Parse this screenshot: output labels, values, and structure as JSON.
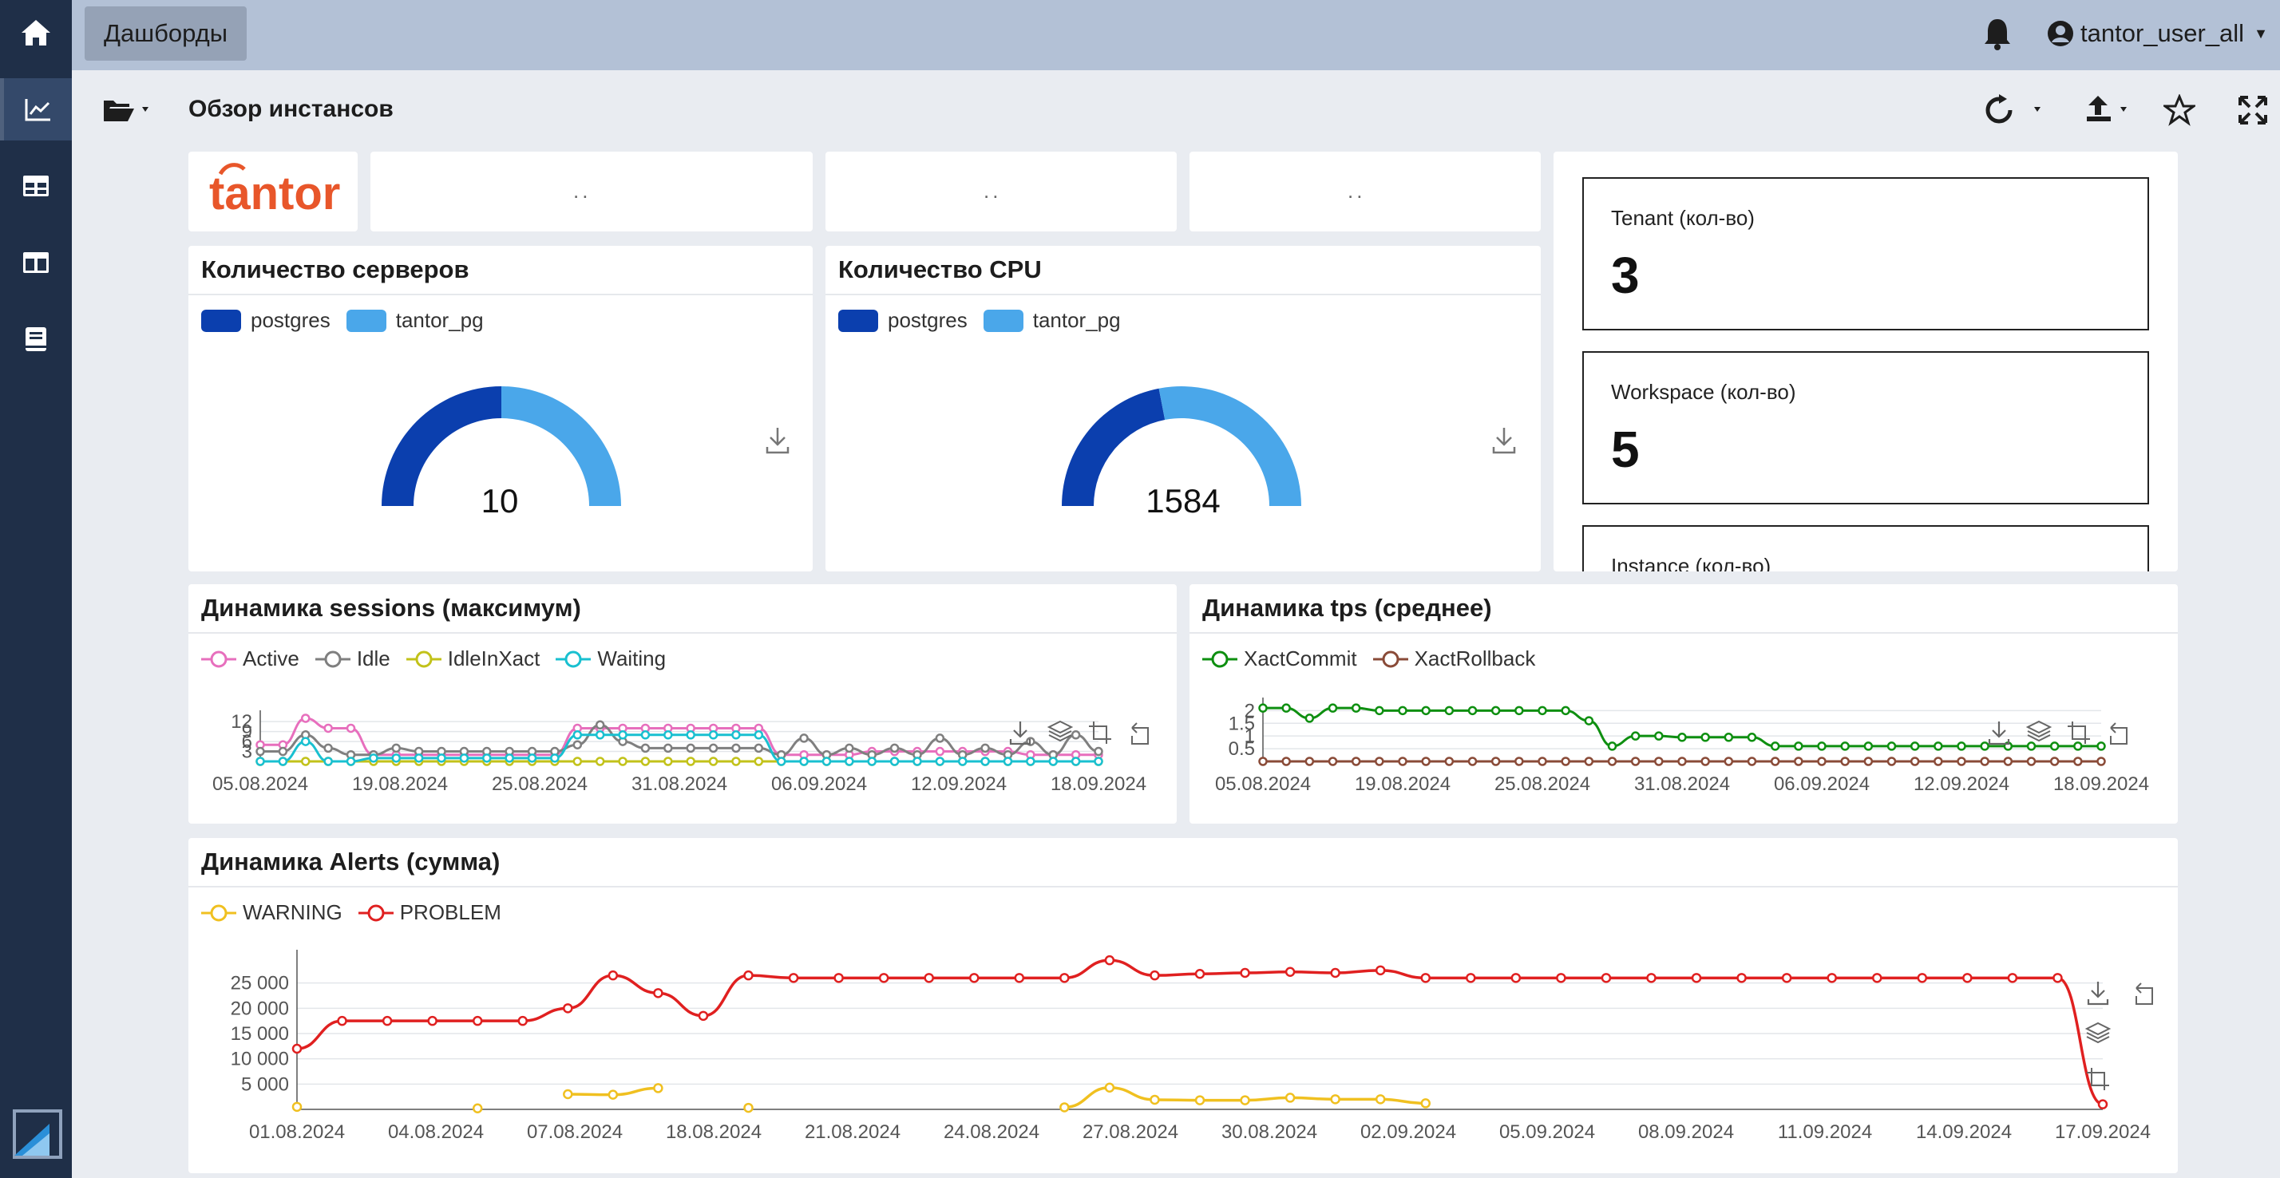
{
  "app": {
    "tab_label": "Дашборды",
    "username": "tantor_user_all"
  },
  "toolbar": {
    "title": "Обзор инстансов"
  },
  "logo": {
    "text": "tantor",
    "color": "#e8562a"
  },
  "placeholders": [
    "..",
    "..",
    ".."
  ],
  "servers": {
    "title": "Количество серверов",
    "legend": [
      "postgres",
      "tantor_pg"
    ],
    "value": "10"
  },
  "cpu": {
    "title": "Количество CPU",
    "legend": [
      "postgres",
      "tantor_pg"
    ],
    "value": "1584"
  },
  "stats": [
    {
      "label": "Tenant (кол-во)",
      "value": "3"
    },
    {
      "label": "Workspace (кол-во)",
      "value": "5"
    },
    {
      "label": "Instance (кол-во)",
      "value": ""
    }
  ],
  "sessions": {
    "title": "Динамика sessions (максимум)",
    "legend": [
      "Active",
      "Idle",
      "IdleInXact",
      "Waiting"
    ]
  },
  "tps": {
    "title": "Динамика tps (среднее)",
    "legend": [
      "XactCommit",
      "XactRollback"
    ]
  },
  "alerts": {
    "title": "Динамика Alerts (сумма)",
    "legend": [
      "WARNING",
      "PROBLEM"
    ]
  },
  "colors": {
    "postgres": "#0b3fae",
    "tantor_pg": "#4aa7ea",
    "active": "#e76fbd",
    "idle": "#7f7f7f",
    "idleinxact": "#c2c21a",
    "waiting": "#19c0d0",
    "commit": "#0e8f10",
    "rollback": "#8a4b38",
    "warning": "#f0c020",
    "problem": "#e02020"
  },
  "chart_data": [
    {
      "type": "pie",
      "title": "Количество серверов",
      "series": [
        {
          "name": "postgres",
          "values": [
            5
          ]
        },
        {
          "name": "tantor_pg",
          "values": [
            5
          ]
        }
      ],
      "total": 10
    },
    {
      "type": "pie",
      "title": "Количество CPU",
      "series": [
        {
          "name": "postgres",
          "values": [
            696
          ]
        },
        {
          "name": "tantor_pg",
          "values": [
            888
          ]
        }
      ],
      "total": 1584
    },
    {
      "type": "line",
      "title": "Динамика sessions (максимум)",
      "xticks": [
        "05.08.2024",
        "19.08.2024",
        "25.08.2024",
        "31.08.2024",
        "06.09.2024",
        "12.09.2024",
        "18.09.2024"
      ],
      "yticks": [
        3,
        6,
        9,
        12
      ],
      "ylim": [
        0,
        13
      ],
      "series": [
        {
          "name": "Active",
          "values": [
            5,
            5,
            13,
            10,
            10,
            2,
            2,
            2,
            2,
            2,
            2,
            2,
            2,
            2,
            10,
            10,
            10,
            10,
            10,
            10,
            10,
            10,
            10,
            2,
            2,
            2,
            2,
            3,
            3,
            3,
            3,
            3,
            3,
            3,
            2,
            2,
            2,
            2
          ]
        },
        {
          "name": "Idle",
          "values": [
            3,
            3,
            8,
            4,
            2,
            2,
            4,
            3,
            3,
            3,
            3,
            3,
            3,
            3,
            5,
            11,
            6,
            4,
            4,
            4,
            4,
            4,
            4,
            2,
            7,
            2,
            4,
            2,
            4,
            2,
            7,
            2,
            4,
            2,
            6,
            2,
            8,
            3
          ]
        },
        {
          "name": "IdleInXact",
          "values": [
            0,
            0,
            0,
            0,
            0,
            0,
            0,
            0,
            0,
            0,
            0,
            0,
            0,
            0,
            0,
            0,
            0,
            0,
            0,
            0,
            0,
            0,
            0,
            0,
            0,
            0,
            0,
            0,
            0,
            0,
            0,
            0,
            0,
            0,
            0,
            0,
            0,
            0
          ]
        },
        {
          "name": "Waiting",
          "values": [
            0,
            0,
            6,
            0,
            0,
            1,
            1,
            1,
            1,
            1,
            1,
            1,
            1,
            1,
            8,
            8,
            8,
            8,
            8,
            8,
            8,
            8,
            8,
            0,
            0,
            0,
            0,
            0,
            0,
            0,
            0,
            0,
            0,
            0,
            0,
            0,
            0,
            0
          ]
        }
      ]
    },
    {
      "type": "line",
      "title": "Динамика tps (среднее)",
      "xticks": [
        "05.08.2024",
        "19.08.2024",
        "25.08.2024",
        "31.08.2024",
        "06.09.2024",
        "12.09.2024",
        "18.09.2024"
      ],
      "yticks": [
        0.5,
        1,
        1.5,
        2
      ],
      "ylim": [
        0,
        2.2
      ],
      "series": [
        {
          "name": "XactCommit",
          "values": [
            2.1,
            2.1,
            1.7,
            2.1,
            2.1,
            2.0,
            2.0,
            2.0,
            2.0,
            2.0,
            2.0,
            2.0,
            2.0,
            2.0,
            1.6,
            0.6,
            1.0,
            1.0,
            0.95,
            0.95,
            0.95,
            0.95,
            0.6,
            0.6,
            0.6,
            0.6,
            0.6,
            0.6,
            0.6,
            0.6,
            0.6,
            0.6,
            0.6,
            0.6,
            0.6,
            0.6,
            0.6
          ]
        },
        {
          "name": "XactRollback",
          "values": [
            0,
            0,
            0,
            0,
            0,
            0,
            0,
            0,
            0,
            0,
            0,
            0,
            0,
            0,
            0,
            0,
            0,
            0,
            0,
            0,
            0,
            0,
            0,
            0,
            0,
            0,
            0,
            0,
            0,
            0,
            0,
            0,
            0,
            0,
            0,
            0,
            0
          ]
        }
      ]
    },
    {
      "type": "line",
      "title": "Динамика Alerts (сумма)",
      "xticks": [
        "01.08.2024",
        "04.08.2024",
        "07.08.2024",
        "18.08.2024",
        "21.08.2024",
        "24.08.2024",
        "27.08.2024",
        "30.08.2024",
        "02.09.2024",
        "05.09.2024",
        "08.09.2024",
        "11.09.2024",
        "14.09.2024",
        "17.09.2024"
      ],
      "yticks": [
        5000,
        10000,
        15000,
        20000,
        25000
      ],
      "ylim": [
        0,
        30000
      ],
      "series": [
        {
          "name": "WARNING",
          "values": [
            500,
            null,
            null,
            null,
            200,
            null,
            3000,
            2900,
            4200,
            null,
            300,
            null,
            null,
            null,
            null,
            null,
            null,
            400,
            4300,
            1900,
            1800,
            1800,
            2300,
            2000,
            2000,
            1200,
            null,
            null,
            null,
            null,
            null,
            null,
            null,
            null,
            null,
            null,
            null,
            null,
            null,
            null,
            null
          ]
        },
        {
          "name": "PROBLEM",
          "values": [
            12000,
            17500,
            17500,
            17500,
            17500,
            17500,
            20000,
            26500,
            23000,
            18500,
            26500,
            26000,
            26000,
            26000,
            26000,
            26000,
            26000,
            26000,
            29500,
            26500,
            26800,
            27000,
            27200,
            27000,
            27500,
            26000,
            26000,
            26000,
            26000,
            26000,
            26000,
            26000,
            26000,
            26000,
            26000,
            26000,
            26000,
            26000,
            26000,
            26000,
            1000
          ]
        }
      ]
    }
  ]
}
